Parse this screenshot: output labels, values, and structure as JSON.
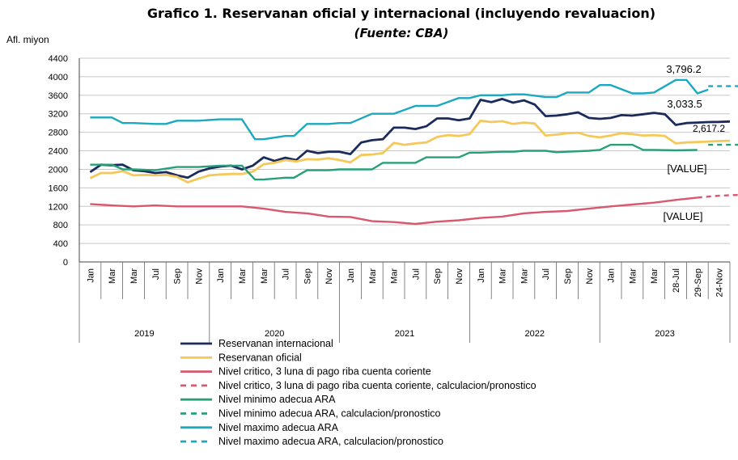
{
  "chart_data": {
    "type": "line",
    "title": "Grafico 1. Reservanan oficial y internacional (incluyendo revaluacion)",
    "subtitle": "(Fuente: CBA)",
    "ylabel": "Afl. miyon",
    "ylim": [
      0,
      4400
    ],
    "yticks": [
      0,
      400,
      800,
      1200,
      1600,
      2000,
      2400,
      2800,
      3200,
      3600,
      4000,
      4400
    ],
    "grid": true,
    "legend_position": "bottom",
    "x_tick_labels": [
      "Jan",
      "Mar",
      "Mar",
      "Jul",
      "Sep",
      "Nov",
      "Jan",
      "Mar",
      "Mar",
      "Jul",
      "Sep",
      "Nov",
      "Jan",
      "Mar",
      "Mar",
      "Jul",
      "Sep",
      "Nov",
      "Jan",
      "Mar",
      "Mar",
      "Jul",
      "Sep",
      "Nov",
      "Jan",
      "Mar",
      "Mar",
      "28-Jul",
      "29-Sep",
      "24-Nov"
    ],
    "years": [
      "2019",
      "2020",
      "2021",
      "2022",
      "2023"
    ],
    "annotations": {
      "max": "3,796.2",
      "intl": "3,033.5",
      "oficial": "2,617.2",
      "value_ara": "[VALUE]",
      "value_critico": "[VALUE]"
    },
    "series": [
      {
        "name": "Reservanan internacional",
        "color": "#1a2b5c",
        "style": "solid",
        "x": [
          0,
          0.5,
          1,
          1.5,
          2,
          2.5,
          3,
          3.5,
          4,
          4.5,
          5,
          5.5,
          6,
          6.5,
          7,
          7.5,
          8,
          8.5,
          9,
          9.5,
          10,
          10.5,
          11,
          11.5,
          12,
          12.5,
          13,
          13.5,
          14,
          14.5,
          15,
          15.5,
          16,
          16.5,
          17,
          17.5,
          18,
          18.5,
          19,
          19.5,
          20,
          20.5,
          21,
          21.5,
          22,
          22.5,
          23,
          23.5,
          24,
          24.5,
          25,
          25.5,
          26,
          26.5,
          27,
          27.5,
          28,
          28.5,
          29,
          29.5
        ],
        "y": [
          1940,
          2100,
          2090,
          2100,
          1980,
          1960,
          1920,
          1940,
          1870,
          1820,
          1950,
          2020,
          2060,
          2080,
          2000,
          2080,
          2260,
          2180,
          2250,
          2200,
          2400,
          2350,
          2380,
          2380,
          2330,
          2580,
          2630,
          2650,
          2900,
          2900,
          2870,
          2930,
          3100,
          3100,
          3060,
          3100,
          3500,
          3450,
          3520,
          3440,
          3490,
          3400,
          3150,
          3160,
          3190,
          3230,
          3110,
          3090,
          3110,
          3170,
          3160,
          3190,
          3220,
          3190,
          2960,
          3000,
          3010,
          3020,
          3025,
          3033.5
        ]
      },
      {
        "name": "Reservanan oficial",
        "color": "#f5c85a",
        "style": "solid",
        "x": [
          0,
          0.5,
          1,
          1.5,
          2,
          2.5,
          3,
          3.5,
          4,
          4.5,
          5,
          5.5,
          6,
          6.5,
          7,
          7.5,
          8,
          8.5,
          9,
          9.5,
          10,
          10.5,
          11,
          11.5,
          12,
          12.5,
          13,
          13.5,
          14,
          14.5,
          15,
          15.5,
          16,
          16.5,
          17,
          17.5,
          18,
          18.5,
          19,
          19.5,
          20,
          20.5,
          21,
          21.5,
          22,
          22.5,
          23,
          23.5,
          24,
          24.5,
          25,
          25.5,
          26,
          26.5,
          27,
          27.5,
          28,
          28.5,
          29,
          29.5
        ],
        "y": [
          1810,
          1920,
          1920,
          1960,
          1870,
          1880,
          1870,
          1880,
          1840,
          1720,
          1800,
          1870,
          1890,
          1900,
          1900,
          1950,
          2110,
          2140,
          2200,
          2170,
          2220,
          2210,
          2240,
          2200,
          2150,
          2310,
          2320,
          2350,
          2570,
          2530,
          2560,
          2580,
          2700,
          2740,
          2720,
          2760,
          3050,
          3020,
          3040,
          2980,
          3010,
          2990,
          2730,
          2750,
          2780,
          2790,
          2720,
          2690,
          2730,
          2780,
          2760,
          2730,
          2740,
          2720,
          2560,
          2580,
          2590,
          2600,
          2610,
          2617.2
        ]
      },
      {
        "name": "Nivel critico, 3 luna di pago riba cuenta coriente",
        "color": "#d9586e",
        "style": "solid",
        "x": [
          0,
          1,
          2,
          3,
          4,
          5,
          6,
          7,
          8,
          9,
          10,
          11,
          12,
          13,
          14,
          15,
          16,
          17,
          18,
          19,
          20,
          21,
          22,
          23,
          24,
          25,
          26,
          27,
          28
        ],
        "y": [
          1250,
          1220,
          1200,
          1220,
          1200,
          1200,
          1200,
          1200,
          1150,
          1080,
          1050,
          980,
          970,
          880,
          860,
          820,
          870,
          900,
          950,
          980,
          1050,
          1080,
          1100,
          1150,
          1200,
          1240,
          1280,
          1340,
          1390
        ]
      },
      {
        "name": "Nivel critico, 3 luna di pago riba cuenta coriente, calculacion/pronostico",
        "color": "#d9586e",
        "style": "dashed",
        "x": [
          28,
          28.5,
          29,
          29.5,
          30
        ],
        "y": [
          1390,
          1410,
          1430,
          1440,
          1450
        ]
      },
      {
        "name": "Nivel minimo adecua ARA",
        "color": "#27a07a",
        "style": "solid",
        "x": [
          0,
          1,
          1.5,
          2,
          3,
          4,
          5,
          6,
          7,
          7.6,
          8,
          9,
          9.4,
          10,
          11,
          11.5,
          12,
          13,
          13.5,
          14,
          15,
          15.5,
          16,
          17,
          17.5,
          18,
          19,
          19.5,
          20,
          21,
          21.5,
          22,
          23,
          23.5,
          24,
          25,
          25.5,
          26,
          27,
          28
        ],
        "y": [
          2100,
          2100,
          2000,
          2000,
          1980,
          2050,
          2050,
          2080,
          2080,
          1780,
          1780,
          1820,
          1820,
          1980,
          1980,
          2000,
          2000,
          2000,
          2140,
          2140,
          2140,
          2260,
          2260,
          2260,
          2360,
          2360,
          2380,
          2380,
          2400,
          2400,
          2370,
          2380,
          2400,
          2420,
          2530,
          2530,
          2420,
          2420,
          2410,
          2420
        ]
      },
      {
        "name": "Nivel minimo adecua ARA, calculacion/pronostico",
        "color": "#27a07a",
        "style": "dashed",
        "x": [
          28.5,
          29,
          29.5,
          30
        ],
        "y": [
          2530,
          2530,
          2530,
          2530
        ]
      },
      {
        "name": "Nivel maximo adecua ARA",
        "color": "#1aa9bf",
        "style": "solid",
        "x": [
          0,
          1,
          1.5,
          2,
          3,
          3.5,
          4,
          5,
          6,
          7,
          7.6,
          8,
          9,
          9.4,
          10,
          11,
          11.5,
          12,
          13,
          13.5,
          14,
          15,
          15.5,
          16,
          17,
          17.5,
          18,
          19,
          19.5,
          20,
          21,
          21.5,
          22,
          23,
          23.5,
          24,
          25,
          25.5,
          26,
          27,
          27.5,
          28,
          28.5
        ],
        "y": [
          3120,
          3120,
          3000,
          3000,
          2980,
          2980,
          3050,
          3050,
          3080,
          3080,
          2650,
          2650,
          2720,
          2720,
          2980,
          2980,
          3000,
          3000,
          3200,
          3200,
          3200,
          3370,
          3370,
          3370,
          3540,
          3540,
          3600,
          3600,
          3620,
          3620,
          3560,
          3560,
          3660,
          3660,
          3820,
          3820,
          3640,
          3640,
          3660,
          3930,
          3930,
          3640,
          3720
        ]
      },
      {
        "name": "Nivel maximo adecua ARA, calculacion/pronostico",
        "color": "#1aa9bf",
        "style": "dashed",
        "x": [
          28.5,
          29,
          29.5,
          30
        ],
        "y": [
          3796.2,
          3796.2,
          3796.2,
          3796.2
        ]
      }
    ]
  }
}
